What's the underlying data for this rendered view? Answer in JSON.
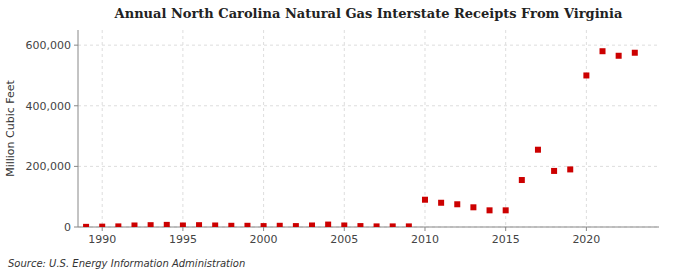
{
  "chart_data": {
    "type": "scatter",
    "title": "Annual North Carolina Natural Gas Interstate Receipts From Virginia",
    "ylabel": "Million Cubic Feet",
    "source": "Source: U.S. Energy Information Administration",
    "x": [
      1989,
      1990,
      1991,
      1992,
      1993,
      1994,
      1995,
      1996,
      1997,
      1998,
      1999,
      2000,
      2001,
      2002,
      2003,
      2004,
      2005,
      2006,
      2007,
      2008,
      2009,
      2010,
      2011,
      2012,
      2013,
      2014,
      2015,
      2016,
      2017,
      2018,
      2019,
      2020,
      2021,
      2022,
      2023
    ],
    "values": [
      500,
      1200,
      2000,
      5000,
      6000,
      7000,
      5000,
      6000,
      5000,
      4000,
      4000,
      3000,
      4000,
      3000,
      5000,
      8000,
      5000,
      3000,
      2000,
      2000,
      2000,
      90000,
      80000,
      75000,
      65000,
      55000,
      55000,
      155000,
      255000,
      185000,
      190000,
      500000,
      580000,
      565000,
      575000
    ],
    "color": "#cc0000",
    "marker": "square",
    "xlim": [
      1988.5,
      2024.5
    ],
    "ylim": [
      0,
      650000
    ],
    "xticks": [
      1990,
      1995,
      2000,
      2005,
      2010,
      2015,
      2020
    ],
    "yticks": [
      0,
      {
        "value": 200000,
        "label": "200,000"
      },
      {
        "value": 400000,
        "label": "400,000"
      },
      {
        "value": 600000,
        "label": "600,000"
      }
    ],
    "grid": true
  }
}
